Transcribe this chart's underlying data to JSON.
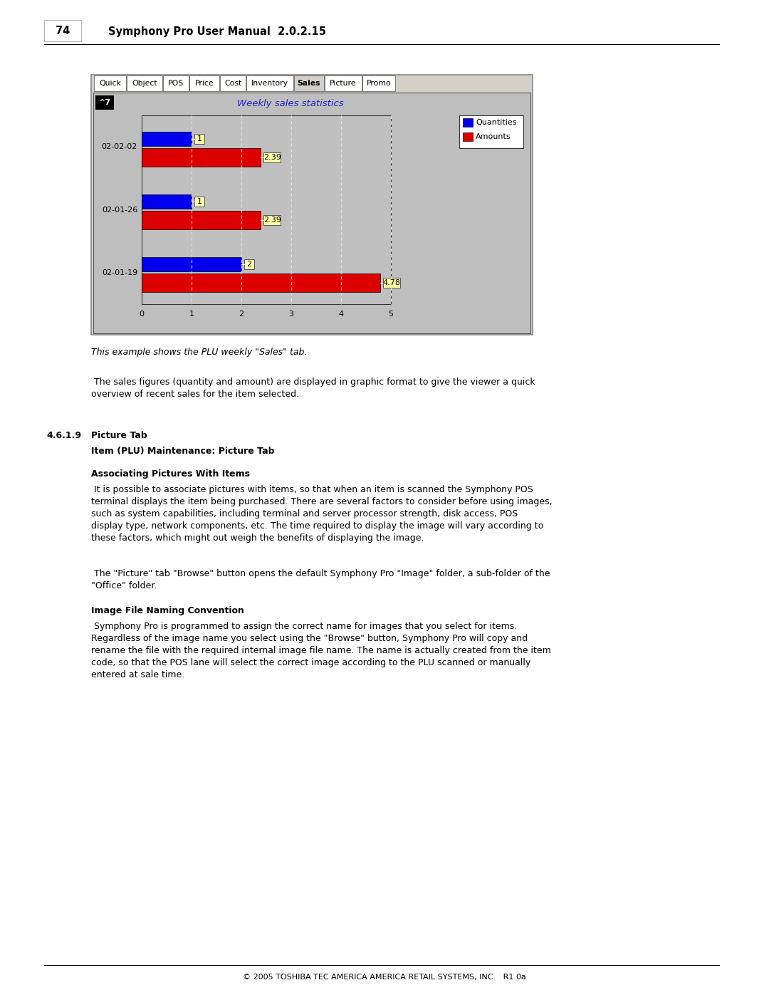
{
  "page_width": 10.8,
  "page_height": 13.97,
  "page_number": "74",
  "header_title": "Symphony Pro User Manual  2.0.2.15",
  "chart_title": "Weekly sales statistics",
  "tab_labels": [
    "Quick",
    "Object",
    "POS",
    "Price",
    "Cost",
    "Inventory",
    "Sales",
    "Picture",
    "Promo"
  ],
  "active_tab": "Sales",
  "categories": [
    "02-02-02",
    "02-01-26",
    "02-01-19"
  ],
  "quantities": [
    1,
    1,
    2
  ],
  "amounts": [
    2.39,
    2.39,
    4.78
  ],
  "xlim_max": 5,
  "xticks": [
    0,
    1,
    2,
    3,
    4,
    5
  ],
  "legend_labels": [
    "Quantities",
    "Amounts"
  ],
  "legend_colors": [
    "#0000EE",
    "#DD0000"
  ],
  "bar_color_qty": "#0000EE",
  "bar_color_amt": "#DD0000",
  "bar_label_bg": "#FFFFAA",
  "caption": "This example shows the PLU weekly \"Sales\" tab.",
  "para1": " The sales figures (quantity and amount) are displayed in graphic format to give the viewer a quick\noverview of recent sales for the item selected.",
  "section_num": "4.6.1.9",
  "section_title": "Picture Tab",
  "subsection_title": "Item (PLU) Maintenance: Picture Tab",
  "subsection2_title": "Associating Pictures With Items",
  "para2": " It is possible to associate pictures with items, so that when an item is scanned the Symphony POS\nterminal displays the item being purchased. There are several factors to consider before using images,\nsuch as system capabilities, including terminal and server processor strength, disk access, POS\ndisplay type, network components, etc. The time required to display the image will vary according to\nthese factors, which might out weigh the benefits of displaying the image.",
  "para3": " The \"Picture\" tab \"Browse\" button opens the default Symphony Pro \"Image\" folder, a sub-folder of the\n\"Office\" folder.",
  "subsection3_title": "Image File Naming Convention",
  "para4": " Symphony Pro is programmed to assign the correct name for images that you select for items.\nRegardless of the image name you select using the \"Browse\" button, Symphony Pro will copy and\nrename the file with the required internal image file name. The name is actually created from the item\ncode, so that the POS lane will select the correct image according to the PLU scanned or manually\nentered at sale time.",
  "footer_text": "© 2005 TOSHIBA TEC AMERICA AMERICA RETAIL SYSTEMS, INC.   R1.0a",
  "plu_label": "^7"
}
